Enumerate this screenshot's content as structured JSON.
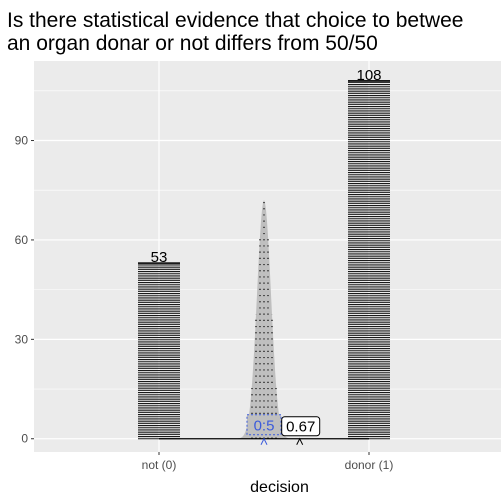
{
  "chart_data": {
    "type": "bar",
    "title_lines": [
      "Is there statistical evidence that choice to betwee",
      "an organ donar or not differs from 50/50"
    ],
    "xlabel": "decision",
    "ylabel": "",
    "categories": [
      "not (0)",
      "donor (1)"
    ],
    "values": [
      53,
      108
    ],
    "ylim": [
      -4,
      114
    ],
    "y_ticks": [
      0,
      30,
      60,
      90
    ],
    "grid": true,
    "overlay": {
      "description": "sampling distribution of proportion under null",
      "null_value_label": "0:5",
      "observed_value_label": "0.67",
      "peak": 72,
      "null_proportion": 0.5,
      "observed_proportion": 0.67
    },
    "colors": {
      "panel": "#ebebeb",
      "grid": "#ffffff",
      "bar_stripe": "#1a1a1a",
      "density_fill": "#bfbfbf",
      "null_accent": "#3b5bdb"
    }
  }
}
